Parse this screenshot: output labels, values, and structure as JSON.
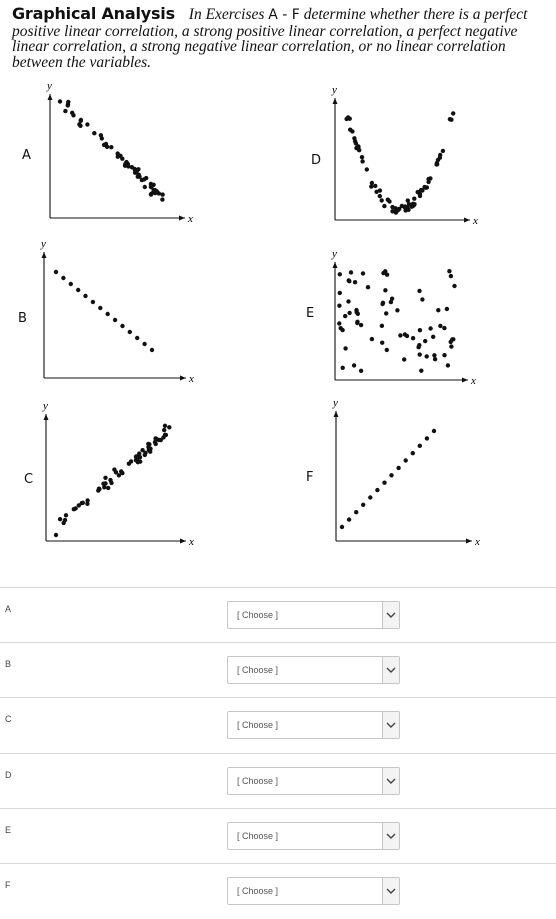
{
  "question": {
    "heading": "Graphical Analysis",
    "text_before": "In Exercises",
    "range": "A - F",
    "text_after": "determine whether there is a perfect positive linear correlation, a strong positive linear correlation, a perfect negative linear correlation, a strong negative linear correlation, or no linear correlation between the variables."
  },
  "plots": [
    {
      "id": "A",
      "xlabel": "x",
      "ylabel": "y",
      "pattern": "strong negative linear"
    },
    {
      "id": "B",
      "xlabel": "x",
      "ylabel": "y",
      "pattern": "perfect negative linear"
    },
    {
      "id": "C",
      "xlabel": "x",
      "ylabel": "y",
      "pattern": "strong positive linear"
    },
    {
      "id": "D",
      "xlabel": "x",
      "ylabel": "y",
      "pattern": "U-shaped, no linear"
    },
    {
      "id": "E",
      "xlabel": "x",
      "ylabel": "y",
      "pattern": "random, no linear"
    },
    {
      "id": "F",
      "xlabel": "x",
      "ylabel": "y",
      "pattern": "perfect positive linear"
    }
  ],
  "answers": [
    {
      "label": "A",
      "selected": "[ Choose ]"
    },
    {
      "label": "B",
      "selected": "[ Choose ]"
    },
    {
      "label": "C",
      "selected": "[ Choose ]"
    },
    {
      "label": "D",
      "selected": "[ Choose ]"
    },
    {
      "label": "E",
      "selected": "[ Choose ]"
    },
    {
      "label": "F",
      "selected": "[ Choose ]"
    }
  ],
  "icons": {
    "dropdown": "chevron-down-icon"
  }
}
